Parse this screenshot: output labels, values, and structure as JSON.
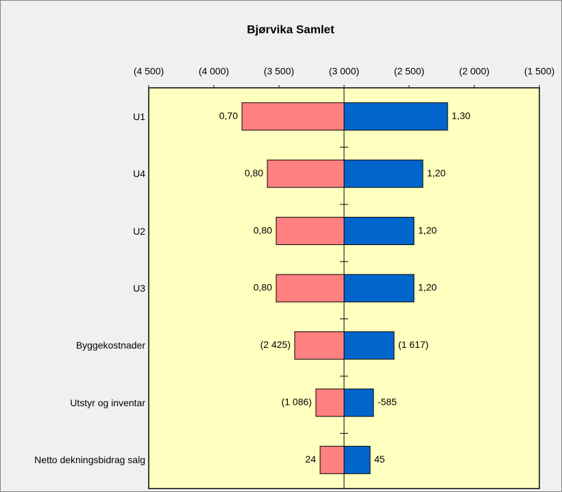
{
  "chart_data": {
    "type": "tornado",
    "title": "Bjørvika Samlet",
    "categories": [
      "U1",
      "U4",
      "U2",
      "U3",
      "Byggekostnader",
      "Utstyr og inventar",
      "Netto dekningsbidrag salg"
    ],
    "axis_crosses": -3000,
    "series": [
      {
        "color": "#ff8080",
        "values": [
          -3784,
          -3589,
          -3521,
          -3521,
          -3379,
          -3216,
          -3184
        ],
        "labels": [
          "0,70",
          "0,80",
          "0,80",
          "0,80",
          "(2 425)",
          "(1 086)",
          "24"
        ]
      },
      {
        "color": "#0066cc",
        "values": [
          -2205,
          -2395,
          -2463,
          -2463,
          -2616,
          -2774,
          -2800
        ],
        "labels": [
          "1,30",
          "1,20",
          "1,20",
          "1,20",
          "(1 617)",
          "-585",
          "45"
        ]
      }
    ],
    "xlim": [
      -4500,
      -1500
    ],
    "xticks": [
      {
        "value": -4500,
        "label": "(4 500)"
      },
      {
        "value": -4000,
        "label": "(4 000)"
      },
      {
        "value": -3500,
        "label": "(3 500)"
      },
      {
        "value": -3000,
        "label": "(3 000)"
      },
      {
        "value": -2500,
        "label": "(2 500)"
      },
      {
        "value": -2000,
        "label": "(2 000)"
      },
      {
        "value": -1500,
        "label": "(1 500)"
      }
    ],
    "plot_background": "#ffffc0"
  }
}
